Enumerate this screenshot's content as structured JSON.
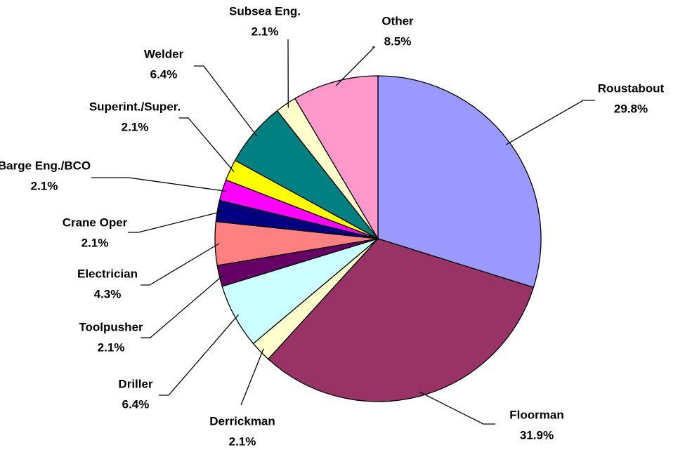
{
  "chart_data": {
    "type": "pie",
    "categories": [
      "Roustabout",
      "Floorman",
      "Derrickman",
      "Driller",
      "Toolpusher",
      "Electrician",
      "Crane Oper",
      "Barge Eng./BCO",
      "Superint./Super.",
      "Welder",
      "Subsea Eng.",
      "Other"
    ],
    "values": [
      29.8,
      31.9,
      2.1,
      6.4,
      2.1,
      4.3,
      2.1,
      2.1,
      2.1,
      6.4,
      2.1,
      8.5
    ],
    "value_labels": [
      "29.8%",
      "31.9%",
      "2.1%",
      "6.4%",
      "2.1%",
      "4.3%",
      "2.1%",
      "2.1%",
      "2.1%",
      "6.4%",
      "2.1%",
      "8.5%"
    ],
    "colors": [
      "#9999ff",
      "#993366",
      "#ffffcc",
      "#ccffff",
      "#660066",
      "#ff8080",
      "#000080",
      "#ff00ff",
      "#ffff00",
      "#008080",
      "#ffffcc",
      "#ff99cc"
    ]
  }
}
